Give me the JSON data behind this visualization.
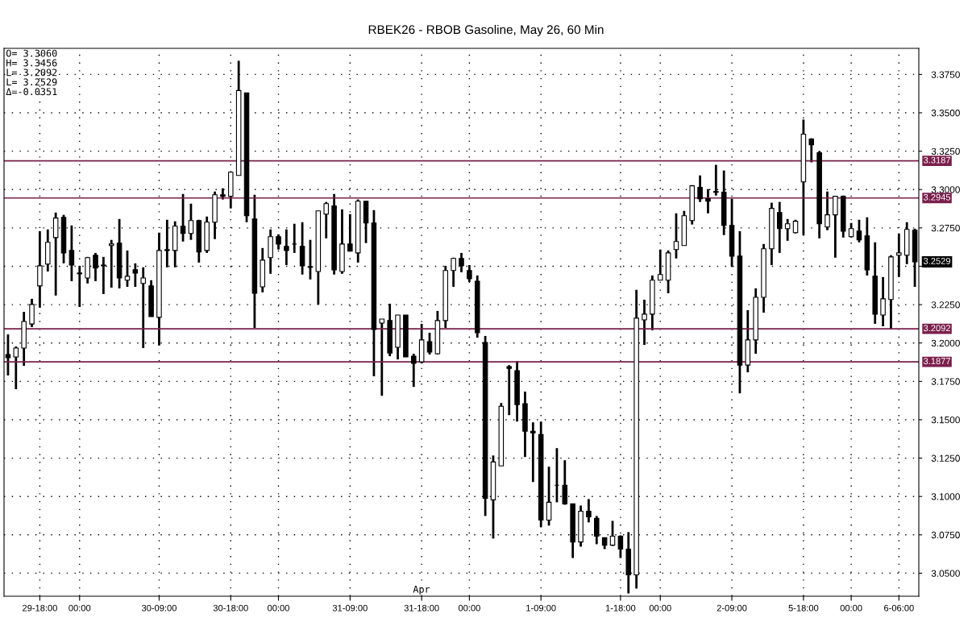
{
  "chart_data": {
    "type": "candlestick",
    "title": "RBEK26 - RBOB Gasoline, May 26, 60 Min",
    "categories": [
      null,
      null,
      null,
      null,
      "29-18:00",
      null,
      null,
      null,
      null,
      "00:00",
      null,
      null,
      null,
      null,
      null,
      null,
      null,
      null,
      null,
      "30-09:00",
      null,
      null,
      null,
      null,
      null,
      null,
      null,
      null,
      "30-18:00",
      null,
      null,
      null,
      null,
      null,
      "00:00",
      null,
      null,
      null,
      null,
      null,
      null,
      null,
      null,
      "31-09:00",
      null,
      null,
      null,
      null,
      null,
      null,
      null,
      null,
      "31-18:00",
      null,
      null,
      null,
      null,
      null,
      "00:00",
      null,
      null,
      null,
      null,
      null,
      null,
      null,
      null,
      "1-09:00",
      null,
      null,
      null,
      null,
      null,
      null,
      null,
      null,
      null,
      "1-18:00",
      null,
      null,
      null,
      null,
      "00:00",
      null,
      null,
      null,
      null,
      null,
      null,
      null,
      null,
      "2-09:00",
      null,
      null,
      null,
      null,
      null,
      null,
      null,
      null,
      "5-18:00",
      null,
      null,
      null,
      null,
      null,
      "00:00",
      null,
      null,
      null,
      null,
      null,
      "6-06:00",
      null,
      null
    ],
    "ohlc": [
      [
        3.1925,
        3.2056,
        3.1788,
        3.1904
      ],
      [
        3.1909,
        3.1977,
        3.1699,
        3.1967
      ],
      [
        3.1967,
        3.2203,
        3.1851,
        3.214
      ],
      [
        3.2124,
        3.2288,
        3.2104,
        3.2251
      ],
      [
        3.2372,
        3.2729,
        3.223,
        3.2503
      ],
      [
        3.2514,
        3.274,
        3.2466,
        3.2656
      ],
      [
        3.2687,
        3.285,
        3.2309,
        3.2814
      ],
      [
        3.2819,
        3.2835,
        3.2519,
        3.2587
      ],
      [
        3.2603,
        3.2766,
        3.2403,
        3.2508
      ],
      [
        3.2456,
        3.2503,
        3.2235,
        3.2451
      ],
      [
        3.2424,
        3.2561,
        3.2388,
        3.2556
      ],
      [
        3.2572,
        3.2587,
        3.2403,
        3.2488
      ],
      [
        3.2503,
        3.2561,
        3.2319,
        3.2508
      ],
      [
        3.2635,
        3.2672,
        3.2361,
        3.2645
      ],
      [
        3.2651,
        3.2808,
        3.2356,
        3.2424
      ],
      [
        3.2409,
        3.2603,
        3.2366,
        3.2435
      ],
      [
        3.2477,
        3.2519,
        3.2366,
        3.2456
      ],
      [
        3.2388,
        3.2493,
        3.1967,
        3.2424
      ],
      [
        3.2372,
        3.2409,
        3.2172,
        3.2172
      ],
      [
        3.2167,
        3.2719,
        3.1985,
        3.2603
      ],
      [
        3.2603,
        3.2803,
        3.2493,
        3.2609
      ],
      [
        3.2603,
        3.2793,
        3.2493,
        3.2761
      ],
      [
        3.2761,
        3.2971,
        3.2661,
        3.2714
      ],
      [
        3.2714,
        3.2908,
        3.2672,
        3.2798
      ],
      [
        3.2798,
        3.2803,
        3.2524,
        3.2593
      ],
      [
        3.2603,
        3.2824,
        3.2587,
        3.2787
      ],
      [
        3.2787,
        3.2987,
        3.2677,
        3.2966
      ],
      [
        3.2966,
        3.3008,
        3.2935,
        3.2956
      ],
      [
        3.2956,
        3.3119,
        3.2877,
        3.3113
      ],
      [
        3.3092,
        3.3839,
        3.3092,
        3.3645
      ],
      [
        3.3629,
        3.3629,
        3.2787,
        3.2829
      ],
      [
        3.2808,
        3.2966,
        3.2098,
        3.2324
      ],
      [
        3.2366,
        3.2619,
        3.233,
        3.254
      ],
      [
        3.2556,
        3.274,
        3.2451,
        3.2693
      ],
      [
        3.2693,
        3.2708,
        3.2609,
        3.2645
      ],
      [
        3.263,
        3.274,
        3.2508,
        3.2603
      ],
      [
        3.2645,
        3.2777,
        3.2587,
        3.2645
      ],
      [
        3.263,
        3.2787,
        3.2446,
        3.2503
      ],
      [
        3.2498,
        3.2672,
        3.2414,
        3.2493
      ],
      [
        3.2466,
        3.2861,
        3.2251,
        3.2861
      ],
      [
        3.284,
        3.2919,
        3.2682,
        3.2908
      ],
      [
        3.2893,
        3.2971,
        3.2446,
        3.2477
      ],
      [
        3.2466,
        3.2871,
        3.2451,
        3.2645
      ],
      [
        3.2645,
        3.284,
        3.2598,
        3.2598
      ],
      [
        3.2587,
        3.2935,
        3.2524,
        3.2924
      ],
      [
        3.2924,
        3.2924,
        3.2651,
        3.2782
      ],
      [
        3.2782,
        3.2866,
        3.1783,
        3.2088
      ],
      [
        3.213,
        3.2156,
        3.1656,
        3.2156
      ],
      [
        3.2146,
        3.2256,
        3.1914,
        3.1935
      ],
      [
        3.1972,
        3.2182,
        3.1893,
        3.2182
      ],
      [
        3.2182,
        3.2182,
        3.1909,
        3.1909
      ],
      [
        3.1914,
        3.193,
        3.1714,
        3.1867
      ],
      [
        3.1877,
        3.2125,
        3.1867,
        3.202
      ],
      [
        3.2009,
        3.2067,
        3.1925,
        3.1941
      ],
      [
        3.193,
        3.2209,
        3.1925,
        3.2146
      ],
      [
        3.2146,
        3.2503,
        3.2098,
        3.2472
      ],
      [
        3.2472,
        3.2556,
        3.2366,
        3.2551
      ],
      [
        3.2551,
        3.2587,
        3.2461,
        3.2503
      ],
      [
        3.2472,
        3.2508,
        3.2398,
        3.2419
      ],
      [
        3.2403,
        3.244,
        3.2035,
        3.2067
      ],
      [
        3.2004,
        3.2046,
        3.0873,
        3.0988
      ],
      [
        3.0978,
        3.1267,
        3.0726,
        3.1225
      ],
      [
        3.1199,
        3.1609,
        3.1199,
        3.1588
      ],
      [
        3.1846,
        3.1856,
        3.153,
        3.1835
      ],
      [
        3.182,
        3.1883,
        3.1488,
        3.1599
      ],
      [
        3.1604,
        3.1683,
        3.1257,
        3.1425
      ],
      [
        3.1425,
        3.1483,
        3.1094,
        3.1415
      ],
      [
        3.1404,
        3.1488,
        3.0799,
        3.0846
      ],
      [
        3.0846,
        3.1194,
        3.081,
        3.0962
      ],
      [
        3.1073,
        3.1315,
        3.0962,
        3.1073
      ],
      [
        3.1073,
        3.1236,
        3.0946,
        3.0952
      ],
      [
        3.0952,
        3.0952,
        3.0599,
        3.0704
      ],
      [
        3.0704,
        3.0941,
        3.0673,
        3.0904
      ],
      [
        3.0904,
        3.0983,
        3.0831,
        3.0867
      ],
      [
        3.0857,
        3.0873,
        3.0689,
        3.0741
      ],
      [
        3.0731,
        3.0731,
        3.0657,
        3.0683
      ],
      [
        3.0683,
        3.0841,
        3.0678,
        3.0741
      ],
      [
        3.0741,
        3.0747,
        3.0599,
        3.0657
      ],
      [
        3.0657,
        3.0768,
        3.0368,
        3.0489
      ],
      [
        3.0489,
        3.2346,
        3.04,
        3.2162
      ],
      [
        3.2151,
        3.2282,
        3.1988,
        3.2188
      ],
      [
        3.2188,
        3.244,
        3.2083,
        3.2409
      ],
      [
        3.2409,
        3.2609,
        3.2409,
        3.2446
      ],
      [
        3.2409,
        3.2603,
        3.2324,
        3.2587
      ],
      [
        3.2609,
        3.2845,
        3.2551,
        3.2661
      ],
      [
        3.2635,
        3.2861,
        3.2635,
        3.2829
      ],
      [
        3.2798,
        3.3029,
        3.2772,
        3.3024
      ],
      [
        3.3014,
        3.3092,
        3.2919,
        3.294
      ],
      [
        3.294,
        3.3003,
        3.2845,
        3.2924
      ],
      [
        3.2987,
        3.3161,
        3.2961,
        3.2982
      ],
      [
        3.2982,
        3.3124,
        3.2703,
        3.2766
      ],
      [
        3.2766,
        3.294,
        3.2498,
        3.2566
      ],
      [
        3.2566,
        3.2729,
        3.1672,
        3.1856
      ],
      [
        3.1856,
        3.2214,
        3.1809,
        3.202
      ],
      [
        3.202,
        3.2356,
        3.193,
        3.2298
      ],
      [
        3.2298,
        3.2645,
        3.2198,
        3.2614
      ],
      [
        3.2614,
        3.2914,
        3.2508,
        3.2877
      ],
      [
        3.285,
        3.2919,
        3.2587,
        3.2745
      ],
      [
        3.2745,
        3.2808,
        3.2666,
        3.2777
      ],
      [
        3.2719,
        3.2803,
        3.2714,
        3.2793
      ],
      [
        3.305,
        3.3456,
        3.2703,
        3.3361
      ],
      [
        3.3329,
        3.3334,
        3.3177,
        3.3292
      ],
      [
        3.324,
        3.325,
        3.2682,
        3.2777
      ],
      [
        3.2756,
        3.2987,
        3.2735,
        3.2835
      ],
      [
        3.2835,
        3.2956,
        3.2556,
        3.2956
      ],
      [
        3.2956,
        3.2961,
        3.2687,
        3.2729
      ],
      [
        3.2693,
        3.2782,
        3.2687,
        3.2745
      ],
      [
        3.2729,
        3.2803,
        3.2656,
        3.2672
      ],
      [
        3.2698,
        3.2819,
        3.244,
        3.2477
      ],
      [
        3.2435,
        3.2656,
        3.2125,
        3.2188
      ],
      [
        3.2182,
        3.243,
        3.2109,
        3.2288
      ],
      [
        3.2283,
        3.2572,
        3.2092,
        3.2561
      ],
      [
        3.2572,
        3.2714,
        3.243,
        3.2587
      ],
      [
        3.2572,
        3.2787,
        3.2514,
        3.274
      ],
      [
        3.2735,
        3.2745,
        3.2366,
        3.2529
      ]
    ],
    "color": "#000000",
    "ylim": [
      3.035,
      3.392
    ],
    "yticks": [
      {
        "value": 3.05,
        "label": "3.0500"
      },
      {
        "value": 3.075,
        "label": "3.0750"
      },
      {
        "value": 3.1,
        "label": "3.1000"
      },
      {
        "value": 3.125,
        "label": "3.1250"
      },
      {
        "value": 3.15,
        "label": "3.1500"
      },
      {
        "value": 3.175,
        "label": "3.1750"
      },
      {
        "value": 3.2,
        "label": "3.2000"
      },
      {
        "value": 3.225,
        "label": "3.2250"
      },
      {
        "value": 3.25,
        "label": null
      },
      {
        "value": 3.275,
        "label": "3.2750"
      },
      {
        "value": 3.3,
        "label": "3.3000"
      },
      {
        "value": 3.325,
        "label": "3.3250"
      },
      {
        "value": 3.35,
        "label": "3.3500"
      },
      {
        "value": 3.375,
        "label": "3.3750"
      }
    ],
    "ref_lines": [
      {
        "axis": "y",
        "value": 3.3187,
        "label": "3.3187",
        "color": "#7a1f4b"
      },
      {
        "axis": "y",
        "value": 3.2945,
        "label": "3.2945",
        "color": "#7a1f4b"
      },
      {
        "axis": "y",
        "value": 3.2092,
        "label": "3.2092",
        "color": "#7a1f4b"
      },
      {
        "axis": "y",
        "value": 3.1877,
        "label": "3.1877",
        "color": "#7a1f4b"
      }
    ],
    "annotations": [
      "O= 3.3060",
      "H= 3.3456",
      "L= 3.2092",
      "L= 3.2529",
      "Δ=-0.0351",
      "Apr",
      "3.2529"
    ],
    "grid": true,
    "line_style": "dotted"
  }
}
